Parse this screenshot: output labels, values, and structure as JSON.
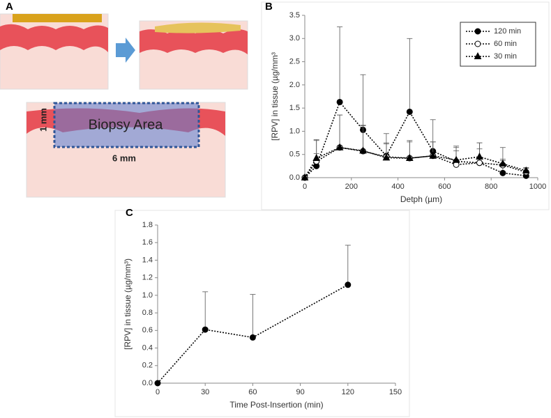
{
  "diagram": {
    "panel_label": "A",
    "thickness_label": "1 mm",
    "width_label": "6 mm",
    "area_label": "Biopsy Area"
  },
  "chart_data": [
    {
      "type": "line",
      "panel_label": "B",
      "x_label": "Detph (µm)",
      "y_label": "[RPV] in tissue (µg/mm³",
      "x": [
        0,
        50,
        150,
        250,
        350,
        450,
        550,
        650,
        750,
        850,
        950
      ],
      "xlim": [
        0,
        1000
      ],
      "xticks": [
        0,
        200,
        400,
        600,
        800,
        1000
      ],
      "ylim": [
        0,
        3.5
      ],
      "yticks": [
        {
          "value": 0,
          "label": "0.0"
        },
        {
          "value": 0.5,
          "label": "0.5"
        },
        {
          "value": 1,
          "label": "1.0"
        },
        {
          "value": 1.5,
          "label": "1.5"
        },
        {
          "value": 2,
          "label": "2.0"
        },
        {
          "value": 2.5,
          "label": "2.5"
        },
        {
          "value": 3,
          "label": "3.0"
        },
        {
          "value": 3.5,
          "label": "3.5"
        }
      ],
      "legend": "top-right",
      "series": [
        {
          "name": "120 min",
          "color": "#000000",
          "marker": "circle",
          "values": [
            0,
            0.25,
            1.63,
            1.03,
            0.47,
            1.42,
            0.57,
            0.35,
            0.32,
            0.1,
            0.04
          ],
          "errors": [
            0,
            0.27,
            1.62,
            1.19,
            0.48,
            1.58,
            0.68,
            0.3,
            0.43,
            0.55,
            0.16
          ]
        },
        {
          "name": "60 min",
          "color": "#000000",
          "marker": "open-circle",
          "values": [
            0,
            0.35,
            0.65,
            0.57,
            0.45,
            0.42,
            0.47,
            0.28,
            0.32,
            0.27,
            0.12
          ],
          "errors": [
            0,
            0.45,
            0.7,
            0.55,
            0.3,
            0.35,
            0.3,
            0.3,
            0.3,
            0.1,
            0.08
          ]
        },
        {
          "name": "30 min",
          "color": "#000000",
          "marker": "triangle",
          "values": [
            0,
            0.42,
            0.65,
            0.58,
            0.43,
            0.42,
            0.47,
            0.38,
            0.45,
            0.3,
            0.15
          ],
          "errors": [
            0,
            0.4,
            0.7,
            0.55,
            0.3,
            0.38,
            0.3,
            0.3,
            0.3,
            0.1,
            0.07
          ]
        }
      ]
    },
    {
      "type": "line",
      "panel_label": "C",
      "x_label": "Time Post-Insertion (min)",
      "y_label": "[RPV] in tissue (µg/mm³)",
      "x": [
        0,
        30,
        60,
        120
      ],
      "xlim": [
        0,
        150
      ],
      "xticks": [
        0,
        30,
        60,
        90,
        120,
        150
      ],
      "ylim": [
        0,
        1.8
      ],
      "yticks": [
        {
          "value": 0,
          "label": "0.0"
        },
        {
          "value": 0.2,
          "label": "0.2"
        },
        {
          "value": 0.4,
          "label": "0.4"
        },
        {
          "value": 0.6,
          "label": "0.6"
        },
        {
          "value": 0.8,
          "label": "0.8"
        },
        {
          "value": 1,
          "label": "1.0"
        },
        {
          "value": 1.2,
          "label": "1.2"
        },
        {
          "value": 1.4,
          "label": "1.4"
        },
        {
          "value": 1.6,
          "label": "1.6"
        },
        {
          "value": 1.8,
          "label": "1.8"
        }
      ],
      "series": [
        {
          "color": "#000000",
          "marker": "circle",
          "values": [
            0,
            0.61,
            0.52,
            1.12
          ],
          "errors": [
            0,
            0.43,
            0.49,
            0.45
          ]
        }
      ]
    }
  ]
}
